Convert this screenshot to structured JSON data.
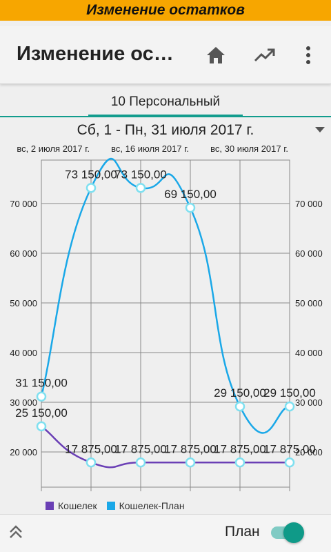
{
  "status_strip": {
    "title": "Изменение остатков"
  },
  "app_bar": {
    "title": "Изменение остатков",
    "icons": [
      "home-icon",
      "trending-up-icon",
      "more-vert-icon"
    ]
  },
  "tabs": [
    {
      "label": "10 Персональный",
      "selected": true
    }
  ],
  "period": {
    "label": "Сб, 1 - Пн, 31 июля 2017 г."
  },
  "colors": {
    "accent": "#129c8d",
    "wallet": "#6a3fb5",
    "wallet_plan": "#1aa8e8",
    "title_strip": "#f7a600"
  },
  "chart_data": {
    "type": "line",
    "x": [
      1,
      2,
      3,
      4,
      5,
      6
    ],
    "top_tick_labels": [
      "вс, 2 июля 2017 г.",
      "вс, 16 июля 2017 г.",
      "вс, 30 июля 2017 г."
    ],
    "yticks": [
      20000,
      30000,
      40000,
      50000,
      60000,
      70000
    ],
    "ytick_labels": [
      "20 000",
      "30 000",
      "40 000",
      "50 000",
      "60 000",
      "70 000"
    ],
    "series": [
      {
        "name": "Кошелек",
        "values": [
          25150,
          17875,
          17875,
          17875,
          17875,
          17875
        ],
        "labels": [
          "25 150,00",
          "17 875,00",
          "17 875,00",
          "17 875,00",
          "17 875,00",
          "17 875,00"
        ]
      },
      {
        "name": "Кошелек-План",
        "values": [
          31150,
          73150,
          73150,
          69150,
          29150,
          29150
        ],
        "labels": [
          "31 150,00",
          "73 150,00",
          "73 150,00",
          "69 150,00",
          "29 150,00",
          "29 150,00"
        ]
      }
    ],
    "grid": true,
    "legend": "bottom-left",
    "legend_entries": [
      "Кошелек",
      "Кошелек-План"
    ]
  },
  "bottom_bar": {
    "plan_label": "План",
    "plan_toggle_on": true
  }
}
